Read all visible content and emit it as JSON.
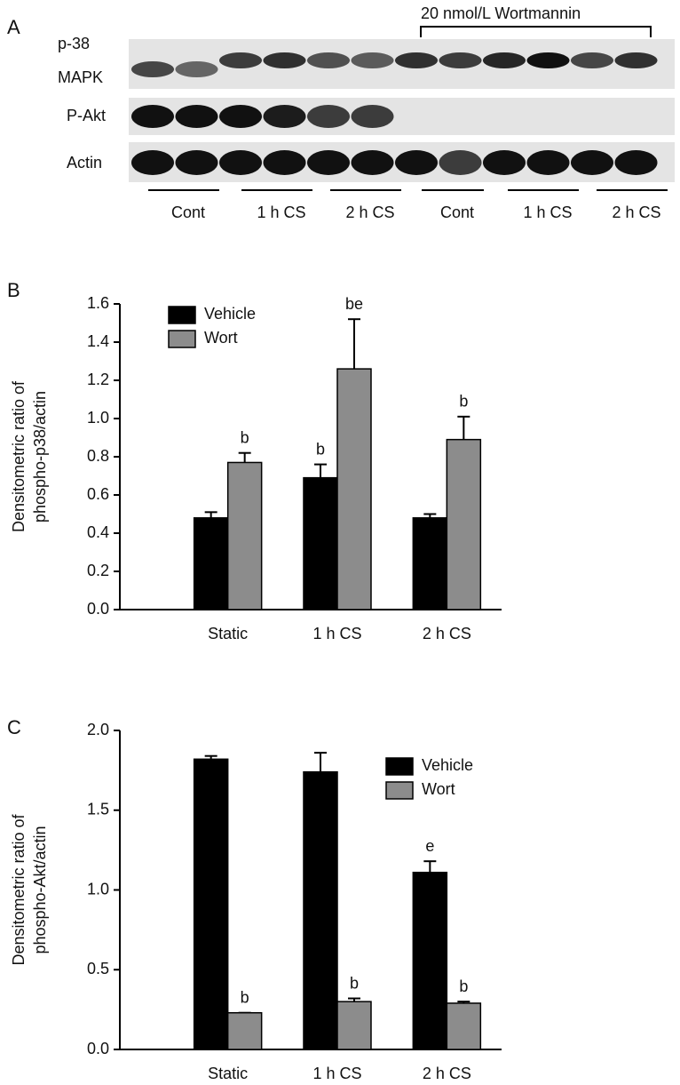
{
  "panel_letters": [
    "A",
    "B",
    "C"
  ],
  "blot": {
    "treatment": "20 nmol/L  Wortmannin",
    "row_labels": [
      "p-38",
      "MAPK",
      "P-Akt",
      "Actin"
    ],
    "lane_groups": [
      "Cont",
      "1 h CS",
      "2 h CS",
      "Cont",
      "1 h CS",
      "2 h CS"
    ]
  },
  "chart_data": [
    {
      "type": "bar",
      "ylabel": [
        "Densitometric ratio of",
        "phospho-p38/actin"
      ],
      "categories": [
        "Static",
        "1 h CS",
        "2 h CS"
      ],
      "series": [
        {
          "name": "Vehicle",
          "color": "#000000",
          "values": [
            0.48,
            0.69,
            0.48
          ],
          "errors": [
            0.03,
            0.07,
            0.02
          ],
          "labels": [
            null,
            "b",
            null
          ]
        },
        {
          "name": "Wort",
          "color": "#8c8c8c",
          "values": [
            0.77,
            1.26,
            0.89
          ],
          "errors": [
            0.05,
            0.26,
            0.12
          ],
          "labels": [
            "b",
            "be",
            "b"
          ]
        }
      ],
      "ylim": [
        0,
        1.6
      ],
      "yticks": [
        {
          "value": 0,
          "label": "0.0"
        },
        0.2,
        0.4,
        0.6,
        0.8,
        {
          "value": 1,
          "label": "1.0"
        },
        1.2,
        1.4,
        1.6
      ],
      "legend": "upper left"
    },
    {
      "type": "bar",
      "ylabel": [
        "Densitometric ratio of",
        "phospho-Akt/actin"
      ],
      "categories": [
        "Static",
        "1 h CS",
        "2 h CS"
      ],
      "series": [
        {
          "name": "Vehicle",
          "color": "#000000",
          "values": [
            1.82,
            1.74,
            1.11
          ],
          "errors": [
            0.02,
            0.12,
            0.07
          ],
          "labels": [
            null,
            null,
            "e"
          ]
        },
        {
          "name": "Wort",
          "color": "#8c8c8c",
          "values": [
            0.23,
            0.3,
            0.29
          ],
          "errors": [
            0,
            0.02,
            0.01
          ],
          "labels": [
            "b",
            "b",
            "b"
          ]
        }
      ],
      "ylim": [
        0,
        2
      ],
      "yticks": [
        {
          "value": 0,
          "label": "0.0"
        },
        0.5,
        {
          "value": 1,
          "label": "1.0"
        },
        1.5,
        {
          "value": 2,
          "label": "2.0"
        }
      ],
      "legend": "upper right"
    }
  ]
}
